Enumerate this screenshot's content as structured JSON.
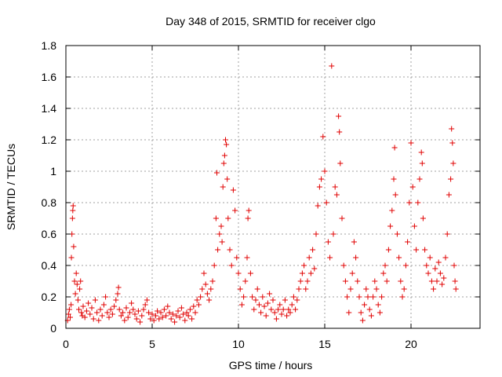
{
  "chart_data": {
    "type": "scatter",
    "title": "Day 348 of 2015, SRMTID for receiver clgo",
    "xlabel": "GPS time / hours",
    "ylabel": "SRMTID / TECUs",
    "xlim": [
      0,
      24
    ],
    "ylim": [
      0,
      1.8
    ],
    "xticks": [
      0,
      5,
      10,
      15,
      20
    ],
    "xtick_labels": [
      "0",
      "5",
      "10",
      "15",
      "20"
    ],
    "yticks": [
      0,
      0.2,
      0.4,
      0.6,
      0.8,
      1,
      1.2,
      1.4,
      1.6,
      1.8
    ],
    "ytick_labels": [
      "0",
      "0.2",
      "0.4",
      "0.6",
      "0.8",
      "1",
      "1.2",
      "1.4",
      "1.6",
      "1.8"
    ],
    "grid": true,
    "marker": "plus",
    "colors": {
      "series": "#e00000",
      "grid": "#a0a0a0",
      "axis": "#000000"
    },
    "series": [
      {
        "name": "SRMTID",
        "points": [
          [
            0.1,
            0.05
          ],
          [
            0.15,
            0.09
          ],
          [
            0.2,
            0.12
          ],
          [
            0.25,
            0.07
          ],
          [
            0.3,
            0.15
          ],
          [
            0.32,
            0.45
          ],
          [
            0.35,
            0.6
          ],
          [
            0.38,
            0.7
          ],
          [
            0.4,
            0.75
          ],
          [
            0.42,
            0.78
          ],
          [
            0.45,
            0.52
          ],
          [
            0.5,
            0.3
          ],
          [
            0.55,
            0.22
          ],
          [
            0.6,
            0.35
          ],
          [
            0.65,
            0.28
          ],
          [
            0.7,
            0.18
          ],
          [
            0.75,
            0.12
          ],
          [
            0.8,
            0.25
          ],
          [
            0.85,
            0.3
          ],
          [
            0.9,
            0.1
          ],
          [
            0.95,
            0.08
          ],
          [
            1.0,
            0.14
          ],
          [
            1.1,
            0.07
          ],
          [
            1.2,
            0.11
          ],
          [
            1.3,
            0.16
          ],
          [
            1.4,
            0.09
          ],
          [
            1.5,
            0.13
          ],
          [
            1.6,
            0.06
          ],
          [
            1.7,
            0.18
          ],
          [
            1.8,
            0.1
          ],
          [
            1.9,
            0.05
          ],
          [
            2.0,
            0.12
          ],
          [
            2.1,
            0.08
          ],
          [
            2.2,
            0.15
          ],
          [
            2.3,
            0.2
          ],
          [
            2.4,
            0.1
          ],
          [
            2.5,
            0.07
          ],
          [
            2.6,
            0.12
          ],
          [
            2.7,
            0.09
          ],
          [
            2.8,
            0.14
          ],
          [
            2.9,
            0.18
          ],
          [
            3.0,
            0.22
          ],
          [
            3.05,
            0.26
          ],
          [
            3.1,
            0.12
          ],
          [
            3.2,
            0.08
          ],
          [
            3.3,
            0.1
          ],
          [
            3.4,
            0.05
          ],
          [
            3.5,
            0.13
          ],
          [
            3.6,
            0.07
          ],
          [
            3.7,
            0.1
          ],
          [
            3.8,
            0.16
          ],
          [
            3.9,
            0.12
          ],
          [
            4.0,
            0.09
          ],
          [
            4.1,
            0.06
          ],
          [
            4.2,
            0.11
          ],
          [
            4.3,
            0.04
          ],
          [
            4.4,
            0.08
          ],
          [
            4.5,
            0.12
          ],
          [
            4.6,
            0.15
          ],
          [
            4.7,
            0.18
          ],
          [
            4.8,
            0.1
          ],
          [
            4.9,
            0.06
          ],
          [
            5.0,
            0.09
          ],
          [
            5.1,
            0.05
          ],
          [
            5.2,
            0.08
          ],
          [
            5.3,
            0.11
          ],
          [
            5.4,
            0.06
          ],
          [
            5.5,
            0.1
          ],
          [
            5.6,
            0.07
          ],
          [
            5.7,
            0.12
          ],
          [
            5.8,
            0.08
          ],
          [
            5.9,
            0.14
          ],
          [
            6.0,
            0.1
          ],
          [
            6.1,
            0.06
          ],
          [
            6.2,
            0.09
          ],
          [
            6.3,
            0.04
          ],
          [
            6.4,
            0.08
          ],
          [
            6.5,
            0.11
          ],
          [
            6.6,
            0.07
          ],
          [
            6.7,
            0.13
          ],
          [
            6.8,
            0.09
          ],
          [
            6.9,
            0.05
          ],
          [
            7.0,
            0.1
          ],
          [
            7.1,
            0.08
          ],
          [
            7.2,
            0.12
          ],
          [
            7.3,
            0.06
          ],
          [
            7.4,
            0.14
          ],
          [
            7.5,
            0.1
          ],
          [
            7.6,
            0.18
          ],
          [
            7.7,
            0.15
          ],
          [
            7.8,
            0.2
          ],
          [
            7.9,
            0.25
          ],
          [
            8.0,
            0.35
          ],
          [
            8.1,
            0.28
          ],
          [
            8.2,
            0.22
          ],
          [
            8.3,
            0.18
          ],
          [
            8.4,
            0.25
          ],
          [
            8.5,
            0.3
          ],
          [
            8.6,
            0.4
          ],
          [
            8.7,
            0.7
          ],
          [
            8.75,
            0.99
          ],
          [
            8.8,
            0.5
          ],
          [
            8.9,
            0.6
          ],
          [
            9.0,
            0.65
          ],
          [
            9.05,
            0.55
          ],
          [
            9.1,
            0.9
          ],
          [
            9.15,
            1.05
          ],
          [
            9.2,
            1.1
          ],
          [
            9.25,
            1.2
          ],
          [
            9.3,
            1.17
          ],
          [
            9.35,
            0.95
          ],
          [
            9.4,
            0.7
          ],
          [
            9.5,
            0.5
          ],
          [
            9.6,
            0.4
          ],
          [
            9.7,
            0.88
          ],
          [
            9.8,
            0.75
          ],
          [
            9.9,
            0.45
          ],
          [
            10.0,
            0.35
          ],
          [
            10.1,
            0.25
          ],
          [
            10.2,
            0.15
          ],
          [
            10.3,
            0.2
          ],
          [
            10.4,
            0.3
          ],
          [
            10.5,
            0.45
          ],
          [
            10.55,
            0.7
          ],
          [
            10.6,
            0.75
          ],
          [
            10.7,
            0.35
          ],
          [
            10.8,
            0.2
          ],
          [
            10.9,
            0.12
          ],
          [
            11.0,
            0.18
          ],
          [
            11.1,
            0.25
          ],
          [
            11.2,
            0.15
          ],
          [
            11.3,
            0.1
          ],
          [
            11.4,
            0.2
          ],
          [
            11.5,
            0.14
          ],
          [
            11.6,
            0.08
          ],
          [
            11.7,
            0.16
          ],
          [
            11.8,
            0.22
          ],
          [
            11.9,
            0.12
          ],
          [
            12.0,
            0.18
          ],
          [
            12.1,
            0.1
          ],
          [
            12.2,
            0.06
          ],
          [
            12.3,
            0.12
          ],
          [
            12.4,
            0.15
          ],
          [
            12.5,
            0.09
          ],
          [
            12.6,
            0.12
          ],
          [
            12.7,
            0.18
          ],
          [
            12.8,
            0.08
          ],
          [
            12.9,
            0.12
          ],
          [
            13.0,
            0.1
          ],
          [
            13.1,
            0.15
          ],
          [
            13.2,
            0.2
          ],
          [
            13.3,
            0.12
          ],
          [
            13.4,
            0.18
          ],
          [
            13.5,
            0.25
          ],
          [
            13.6,
            0.3
          ],
          [
            13.7,
            0.35
          ],
          [
            13.8,
            0.4
          ],
          [
            13.9,
            0.25
          ],
          [
            14.0,
            0.3
          ],
          [
            14.1,
            0.45
          ],
          [
            14.2,
            0.35
          ],
          [
            14.3,
            0.5
          ],
          [
            14.4,
            0.38
          ],
          [
            14.5,
            0.6
          ],
          [
            14.6,
            0.78
          ],
          [
            14.7,
            0.9
          ],
          [
            14.8,
            0.95
          ],
          [
            14.9,
            1.22
          ],
          [
            15.0,
            1.0
          ],
          [
            15.1,
            0.8
          ],
          [
            15.2,
            0.55
          ],
          [
            15.3,
            0.45
          ],
          [
            15.4,
            1.67
          ],
          [
            15.5,
            0.6
          ],
          [
            15.6,
            0.9
          ],
          [
            15.7,
            0.85
          ],
          [
            15.8,
            1.35
          ],
          [
            15.85,
            1.25
          ],
          [
            15.9,
            1.05
          ],
          [
            16.0,
            0.7
          ],
          [
            16.1,
            0.4
          ],
          [
            16.2,
            0.3
          ],
          [
            16.3,
            0.2
          ],
          [
            16.4,
            0.1
          ],
          [
            16.5,
            0.25
          ],
          [
            16.6,
            0.35
          ],
          [
            16.7,
            0.55
          ],
          [
            16.8,
            0.45
          ],
          [
            16.9,
            0.3
          ],
          [
            17.0,
            0.2
          ],
          [
            17.1,
            0.1
          ],
          [
            17.2,
            0.05
          ],
          [
            17.3,
            0.15
          ],
          [
            17.4,
            0.25
          ],
          [
            17.5,
            0.2
          ],
          [
            17.6,
            0.12
          ],
          [
            17.7,
            0.08
          ],
          [
            17.8,
            0.2
          ],
          [
            17.9,
            0.3
          ],
          [
            18.0,
            0.25
          ],
          [
            18.1,
            0.15
          ],
          [
            18.2,
            0.1
          ],
          [
            18.3,
            0.2
          ],
          [
            18.4,
            0.35
          ],
          [
            18.5,
            0.4
          ],
          [
            18.6,
            0.3
          ],
          [
            18.7,
            0.5
          ],
          [
            18.8,
            0.65
          ],
          [
            18.9,
            0.75
          ],
          [
            19.0,
            0.95
          ],
          [
            19.05,
            1.15
          ],
          [
            19.1,
            0.85
          ],
          [
            19.2,
            0.6
          ],
          [
            19.3,
            0.45
          ],
          [
            19.4,
            0.3
          ],
          [
            19.5,
            0.2
          ],
          [
            19.6,
            0.25
          ],
          [
            19.7,
            0.4
          ],
          [
            19.8,
            0.55
          ],
          [
            19.9,
            0.8
          ],
          [
            20.0,
            1.18
          ],
          [
            20.1,
            0.9
          ],
          [
            20.2,
            0.65
          ],
          [
            20.3,
            0.5
          ],
          [
            20.4,
            0.8
          ],
          [
            20.5,
            0.95
          ],
          [
            20.6,
            1.12
          ],
          [
            20.65,
            1.05
          ],
          [
            20.7,
            0.7
          ],
          [
            20.8,
            0.5
          ],
          [
            20.9,
            0.4
          ],
          [
            21.0,
            0.35
          ],
          [
            21.1,
            0.45
          ],
          [
            21.2,
            0.3
          ],
          [
            21.3,
            0.25
          ],
          [
            21.4,
            0.38
          ],
          [
            21.5,
            0.3
          ],
          [
            21.6,
            0.42
          ],
          [
            21.7,
            0.35
          ],
          [
            21.8,
            0.28
          ],
          [
            21.9,
            0.32
          ],
          [
            22.0,
            0.45
          ],
          [
            22.1,
            0.6
          ],
          [
            22.2,
            0.85
          ],
          [
            22.3,
            0.95
          ],
          [
            22.35,
            1.27
          ],
          [
            22.4,
            1.18
          ],
          [
            22.45,
            1.05
          ],
          [
            22.5,
            0.4
          ],
          [
            22.55,
            0.3
          ],
          [
            22.6,
            0.25
          ]
        ]
      }
    ]
  }
}
